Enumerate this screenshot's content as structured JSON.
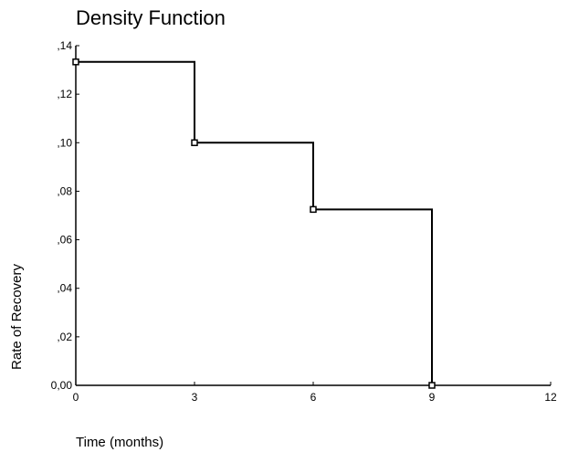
{
  "chart_data": {
    "type": "line",
    "title": "Density Function",
    "xlabel": "Time (months)",
    "ylabel": "Rate of Recovery",
    "xlim": [
      0,
      12
    ],
    "ylim": [
      0,
      0.14
    ],
    "x_ticks": [
      0,
      3,
      6,
      9,
      12
    ],
    "x_tick_labels": [
      "0",
      "3",
      "6",
      "9",
      "12"
    ],
    "y_ticks": [
      0,
      0.02,
      0.04,
      0.06,
      0.08,
      0.1,
      0.12,
      0.14
    ],
    "y_tick_labels": [
      "0,00",
      ",02",
      ",04",
      ",06",
      ",08",
      ",10",
      ",12",
      ",14"
    ],
    "grid": false,
    "legend": "none",
    "step": "post",
    "series": [
      {
        "x": [
          0,
          3,
          6,
          9
        ],
        "y": [
          0.1333,
          0.1,
          0.0725,
          0.0
        ]
      }
    ],
    "colors": {
      "line": "#000000",
      "axis": "#000000"
    }
  }
}
